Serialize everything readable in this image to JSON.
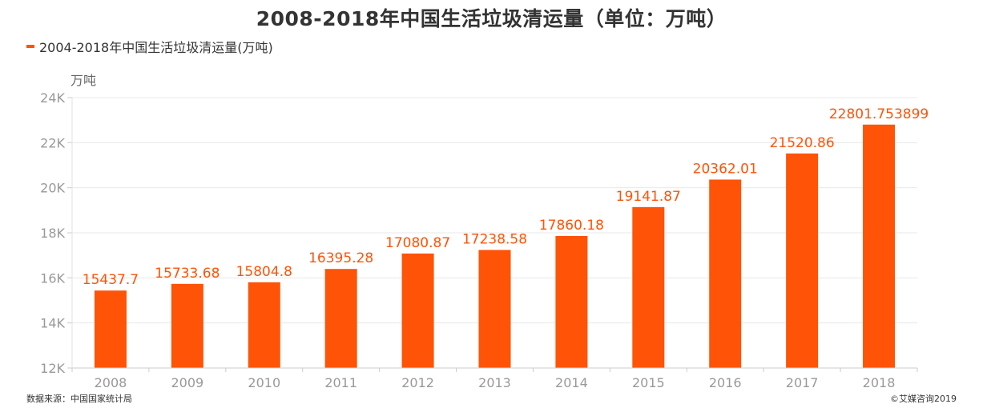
{
  "title": "2008-2018年中国生活垃圾清运量（单位：万吨）",
  "legend_label": "2004-2018年中国生活垃圾清运量(万吨)",
  "footer": {
    "source": "数据来源：中国国家统计局",
    "copyright": "©艾媒咨询2019"
  },
  "colors": {
    "bar": "#FF5307",
    "label": "#FF5307",
    "grid": "#E8E8E8",
    "axis_text": "#999999"
  },
  "chart_data": {
    "type": "bar",
    "categories": [
      "2008",
      "2009",
      "2010",
      "2011",
      "2012",
      "2013",
      "2014",
      "2015",
      "2016",
      "2017",
      "2018"
    ],
    "series": [
      {
        "name": "2004-2018年中国生活垃圾清运量(万吨)",
        "values": [
          15437.7,
          15733.68,
          15804.8,
          16395.28,
          17080.87,
          17238.58,
          17860.18,
          19141.87,
          20362.01,
          21520.86,
          22801.753899
        ]
      }
    ],
    "value_labels": [
      "15437.7",
      "15733.68",
      "15804.8",
      "16395.28",
      "17080.87",
      "17238.58",
      "17860.18",
      "19141.87",
      "20362.01",
      "21520.86",
      "22801.753899"
    ],
    "ylabel": "万吨",
    "xlabel": "",
    "ylim": [
      12000,
      24000
    ],
    "yticks": [
      12000,
      14000,
      16000,
      18000,
      20000,
      22000,
      24000
    ],
    "ytick_labels": [
      "12K",
      "14K",
      "16K",
      "18K",
      "20K",
      "22K",
      "24K"
    ],
    "grid": true,
    "legend_position": "top-left"
  }
}
